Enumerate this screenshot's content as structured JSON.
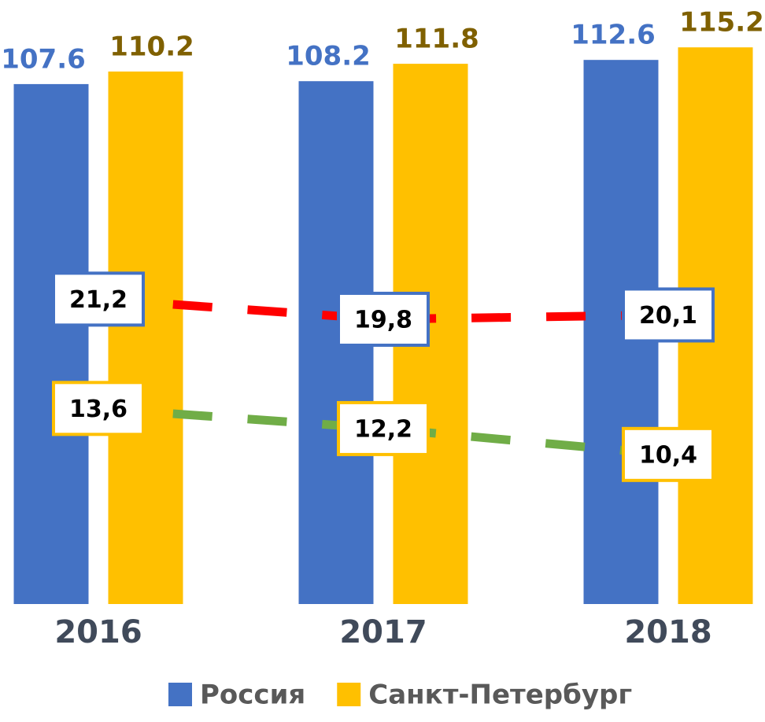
{
  "chart_data": {
    "type": "bar",
    "categories": [
      "2016",
      "2017",
      "2018"
    ],
    "series": [
      {
        "name": "Россия",
        "color": "#4472c4",
        "label_color": "#4472c4",
        "values": [
          107.6,
          108.2,
          112.6
        ]
      },
      {
        "name": "Санкт-Петербург",
        "color": "#ffc000",
        "label_color": "#7f6000",
        "values": [
          110.2,
          111.8,
          115.2
        ]
      },
      {
        "type": "line",
        "axis": "y2",
        "color": "#ff0000",
        "box_color": "#4472c4",
        "dashed": true,
        "values": [
          21.2,
          19.8,
          20.1
        ],
        "value_labels": [
          "21,2",
          "19,8",
          "20,1"
        ]
      },
      {
        "type": "line",
        "axis": "y2",
        "color": "#70ad47",
        "box_color": "#ffc000",
        "dashed": true,
        "values": [
          13.6,
          12.2,
          10.4
        ],
        "value_labels": [
          "13,6",
          "12,2",
          "10,4"
        ]
      }
    ],
    "ylim": [
      0,
      125
    ],
    "y2lim": [
      0,
      42
    ],
    "legend": "bottom"
  }
}
